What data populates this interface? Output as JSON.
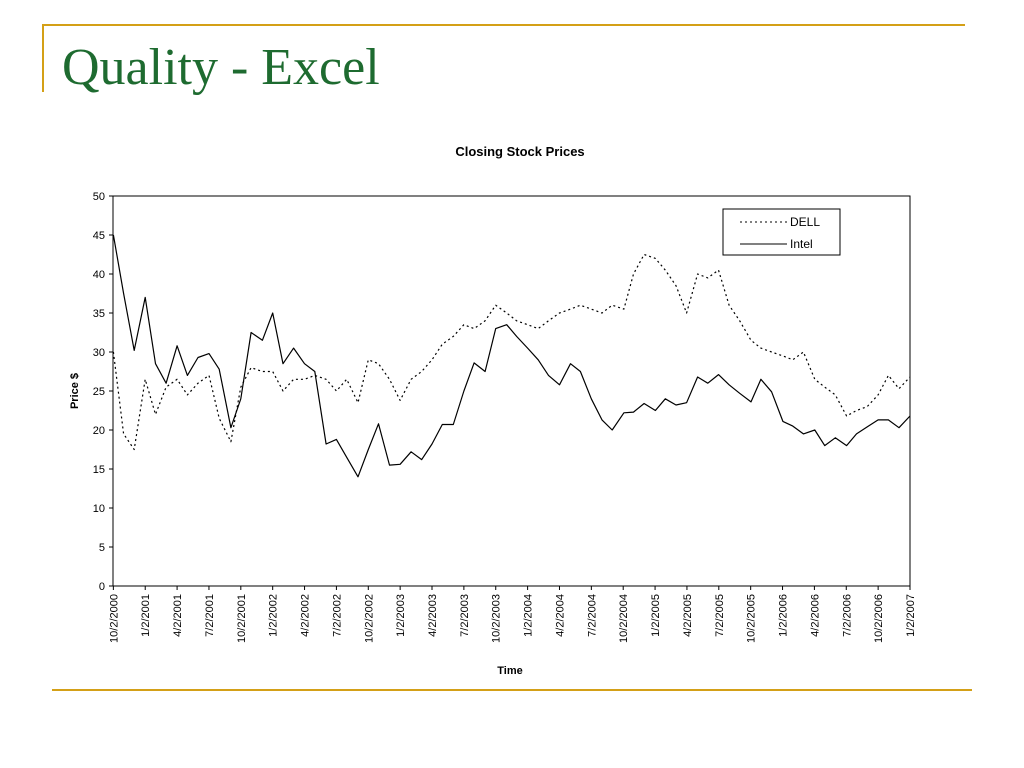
{
  "slide": {
    "title": "Quality - Excel",
    "accent_color": "#d4a017",
    "title_color": "#1e6b30"
  },
  "chart_data": {
    "type": "line",
    "title": "Closing Stock Prices",
    "xlabel": "Time",
    "ylabel": "Price $",
    "ylim": [
      0,
      50
    ],
    "yticks": [
      0,
      5,
      10,
      15,
      20,
      25,
      30,
      35,
      40,
      45,
      50
    ],
    "xlim": [
      "10/2/2000",
      "1/2/2007"
    ],
    "x_tick_labels": [
      "10/2/2000",
      "1/2/2001",
      "4/2/2001",
      "7/2/2001",
      "10/2/2001",
      "1/2/2002",
      "4/2/2002",
      "7/2/2002",
      "10/2/2002",
      "1/2/2003",
      "4/2/2003",
      "7/2/2003",
      "10/2/2003",
      "1/2/2004",
      "4/2/2004",
      "7/2/2004",
      "10/2/2004",
      "1/2/2005",
      "4/2/2005",
      "7/2/2005",
      "10/2/2005",
      "1/2/2006",
      "4/2/2006",
      "7/2/2006",
      "10/2/2006",
      "1/2/2007"
    ],
    "x_unit": "months",
    "grid": false,
    "legend_position": "top-right",
    "series": [
      {
        "name": "DELL",
        "style": "dotted",
        "color": "#000000",
        "x": [
          "10/2/2000",
          "11/1/2000",
          "12/1/2000",
          "1/2/2001",
          "2/1/2001",
          "3/1/2001",
          "4/2/2001",
          "5/1/2001",
          "6/1/2001",
          "7/2/2001",
          "8/1/2001",
          "9/4/2001",
          "10/2/2001",
          "11/1/2001",
          "12/3/2001",
          "1/2/2002",
          "2/1/2002",
          "3/1/2002",
          "4/2/2002",
          "5/1/2002",
          "6/3/2002",
          "7/2/2002",
          "8/1/2002",
          "9/3/2002",
          "10/2/2002",
          "11/1/2002",
          "12/2/2002",
          "1/2/2003",
          "2/3/2003",
          "3/3/2003",
          "4/2/2003",
          "5/1/2003",
          "6/2/2003",
          "7/2/2003",
          "8/1/2003",
          "9/2/2003",
          "10/2/2003",
          "11/3/2003",
          "12/1/2003",
          "1/2/2004",
          "2/2/2004",
          "3/1/2004",
          "4/2/2004",
          "5/3/2004",
          "6/1/2004",
          "7/2/2004",
          "8/2/2004",
          "9/1/2004",
          "10/4/2004",
          "11/1/2004",
          "12/1/2004",
          "1/3/2005",
          "2/1/2005",
          "3/1/2005",
          "4/1/2005",
          "5/2/2005",
          "6/1/2005",
          "7/1/2005",
          "8/1/2005",
          "9/1/2005",
          "10/3/2005",
          "11/1/2005",
          "12/1/2005",
          "1/3/2006",
          "2/1/2006",
          "3/1/2006",
          "4/3/2006",
          "5/1/2006",
          "6/1/2006",
          "7/3/2006",
          "8/1/2006",
          "9/1/2006",
          "10/2/2006",
          "11/1/2006",
          "12/1/2006",
          "1/2/2007"
        ],
        "values": [
          30,
          19.5,
          17.5,
          26.5,
          22,
          25.5,
          26.5,
          24.5,
          26,
          27,
          21.5,
          18.5,
          25.5,
          28,
          27.5,
          27.5,
          25,
          26.5,
          26.5,
          27,
          26.5,
          25,
          26.5,
          23.5,
          29,
          28.5,
          26.5,
          23.8,
          26.5,
          27.5,
          29,
          31,
          32,
          33.5,
          33,
          34,
          36,
          35,
          34,
          33.5,
          33,
          34,
          35,
          35.5,
          36,
          35.5,
          35,
          36,
          35.5,
          40,
          42.5,
          42,
          40.5,
          38.5,
          35,
          40,
          39.5,
          40.5,
          36,
          34,
          31.5,
          30.5,
          30,
          29.5,
          29,
          30,
          26.5,
          25.5,
          24.5,
          21.8,
          22.5,
          23,
          24.5,
          27,
          25.3,
          26.8
        ]
      },
      {
        "name": "Intel",
        "style": "solid",
        "color": "#000000",
        "x": [
          "10/2/2000",
          "11/1/2000",
          "12/1/2000",
          "1/2/2001",
          "2/1/2001",
          "3/1/2001",
          "4/2/2001",
          "5/1/2001",
          "6/1/2001",
          "7/2/2001",
          "8/1/2001",
          "9/4/2001",
          "10/2/2001",
          "11/1/2001",
          "12/3/2001",
          "1/2/2002",
          "2/1/2002",
          "3/1/2002",
          "4/2/2002",
          "5/1/2002",
          "6/3/2002",
          "7/2/2002",
          "8/1/2002",
          "9/3/2002",
          "10/2/2002",
          "11/1/2002",
          "12/2/2002",
          "1/2/2003",
          "2/3/2003",
          "3/3/2003",
          "4/2/2003",
          "5/1/2003",
          "6/2/2003",
          "7/2/2003",
          "8/1/2003",
          "9/2/2003",
          "10/2/2003",
          "11/3/2003",
          "12/1/2003",
          "1/2/2004",
          "2/2/2004",
          "3/1/2004",
          "4/2/2004",
          "5/3/2004",
          "6/1/2004",
          "7/2/2004",
          "8/2/2004",
          "9/1/2004",
          "10/4/2004",
          "11/1/2004",
          "12/1/2004",
          "1/3/2005",
          "2/1/2005",
          "3/1/2005",
          "4/1/2005",
          "5/2/2005",
          "6/1/2005",
          "7/1/2005",
          "8/1/2005",
          "9/1/2005",
          "10/3/2005",
          "11/1/2005",
          "12/1/2005",
          "1/3/2006",
          "2/1/2006",
          "3/1/2006",
          "4/3/2006",
          "5/1/2006",
          "6/1/2006",
          "7/3/2006",
          "8/1/2006",
          "9/1/2006",
          "10/2/2006",
          "11/1/2006",
          "12/1/2006",
          "1/2/2007"
        ],
        "values": [
          45,
          37.5,
          30.2,
          37,
          28.5,
          26,
          30.8,
          27,
          29.3,
          29.8,
          27.8,
          20.3,
          24,
          32.5,
          31.5,
          35,
          28.5,
          30.5,
          28.5,
          27.5,
          18.2,
          18.8,
          16.5,
          14,
          17.5,
          20.8,
          15.5,
          15.6,
          17.2,
          16.2,
          18.2,
          20.7,
          20.7,
          25,
          28.6,
          27.5,
          33,
          33.5,
          32,
          30.5,
          29,
          27,
          25.8,
          28.5,
          27.5,
          24,
          21.3,
          20,
          22.2,
          22.3,
          23.4,
          22.5,
          24,
          23.2,
          23.5,
          26.8,
          26,
          27.1,
          25.8,
          24.7,
          23.6,
          26.5,
          24.9,
          21.1,
          20.5,
          19.5,
          20,
          18,
          19,
          18,
          19.5,
          20.4,
          21.3,
          21.3,
          20.3,
          21.8
        ]
      }
    ]
  }
}
